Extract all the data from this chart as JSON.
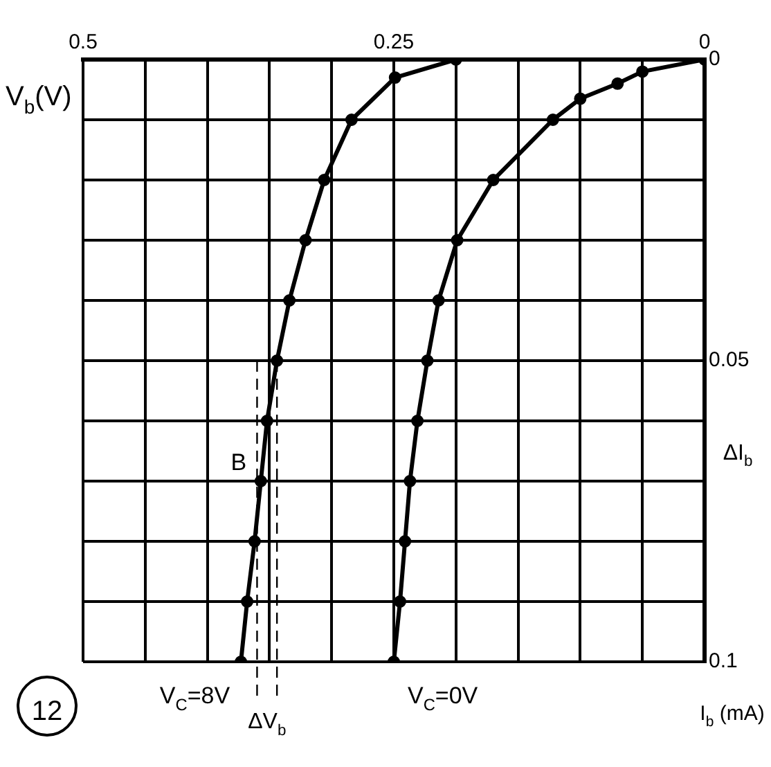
{
  "chart_data": {
    "type": "line",
    "xlabel": "V$_{b}$(V)",
    "ylabel": "I$_{b}$ (mA)",
    "xlim": [
      0.5,
      0
    ],
    "ylim": [
      0.1,
      0
    ],
    "xticks": [
      0.5,
      {
        "value": 0.45,
        "label": null
      },
      {
        "value": 0.4,
        "label": null
      },
      {
        "value": 0.35,
        "label": null
      },
      {
        "value": 0.3,
        "label": null
      },
      0.25,
      {
        "value": 0.2,
        "label": null
      },
      {
        "value": 0.15,
        "label": null
      },
      {
        "value": 0.1,
        "label": null
      },
      {
        "value": 0.05,
        "label": null
      },
      0
    ],
    "yticks": [
      0,
      {
        "value": 0.01,
        "label": null
      },
      {
        "value": 0.02,
        "label": null
      },
      {
        "value": 0.03,
        "label": null
      },
      {
        "value": 0.04,
        "label": null
      },
      0.05,
      {
        "value": 0.06,
        "label": null
      },
      {
        "value": 0.07,
        "label": null
      },
      {
        "value": 0.08,
        "label": null
      },
      {
        "value": 0.09,
        "label": null
      },
      0.1
    ],
    "grid": true,
    "legend": false,
    "marker": "circle",
    "line_style": "solid",
    "series": [
      {
        "name": "V$_{C}$=8V",
        "color": "#000000",
        "x": [
          0.2,
          0.249,
          0.284,
          0.306,
          0.321,
          0.334,
          0.344,
          0.352,
          0.357,
          0.362,
          0.368,
          0.373
        ],
        "values": [
          0,
          0.003,
          0.01,
          0.02,
          0.03,
          0.04,
          0.05,
          0.06,
          0.07,
          0.08,
          0.09,
          0.1
        ]
      },
      {
        "name": "V$_{C}$=0V",
        "color": "#000000",
        "x": [
          0,
          0.05,
          0.07,
          0.1,
          0.122,
          0.17,
          0.199,
          0.214,
          0.223,
          0.231,
          0.237,
          0.241,
          0.245,
          0.25
        ],
        "values": [
          0,
          0.002,
          0.004,
          0.0065,
          0.01,
          0.02,
          0.03,
          0.04,
          0.05,
          0.06,
          0.07,
          0.08,
          0.09,
          0.1
        ]
      }
    ],
    "ref_lines": [
      {
        "axis": "x",
        "value": 0.36,
        "line_style": "dashed",
        "color": "#000000"
      },
      {
        "axis": "x",
        "value": 0.344,
        "line_style": "dashed",
        "color": "#000000"
      }
    ],
    "annotations": [
      {
        "text": "B",
        "x": 0.357,
        "y": 0.07
      },
      "ΔI$_{b}$",
      "12",
      "ΔV$_{b}$"
    ]
  }
}
